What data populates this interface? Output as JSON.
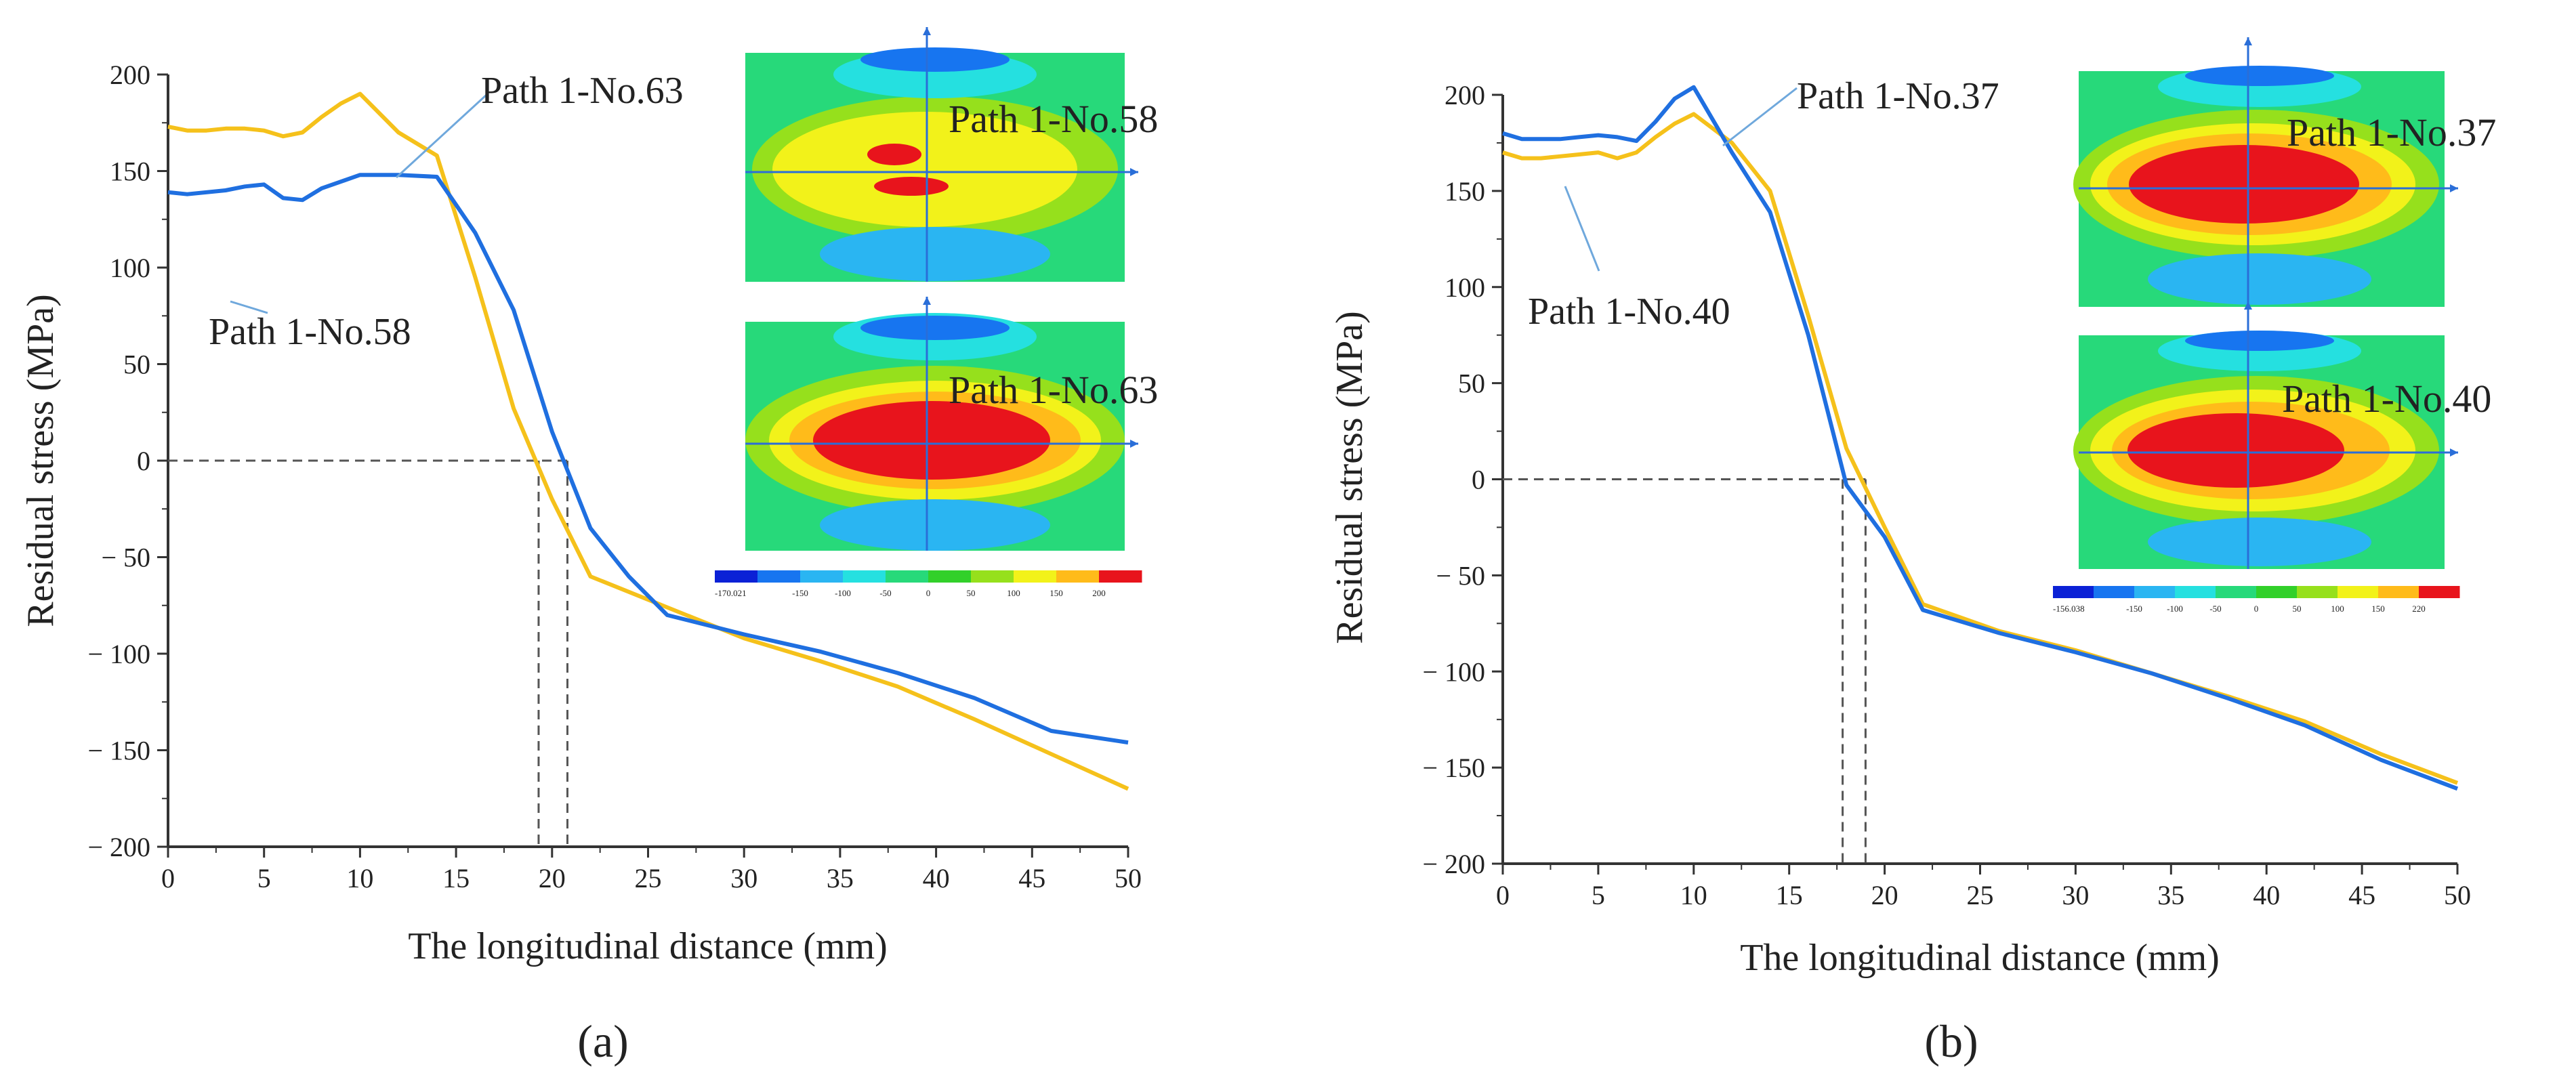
{
  "figure": {
    "panel_labels": [
      "(a)",
      "(b)"
    ]
  },
  "chart_data": [
    {
      "type": "line",
      "panel": "(a)",
      "xlabel": "The longitudinal distance (mm)",
      "ylabel": "Residual  stress (MPa)",
      "xlim": [
        0,
        50
      ],
      "ylim": [
        -200,
        200
      ],
      "xticks": [
        0,
        5,
        10,
        15,
        20,
        25,
        30,
        35,
        40,
        45,
        50
      ],
      "yticks": [
        200,
        150,
        100,
        50,
        0,
        -50,
        -100,
        -150,
        -200
      ],
      "xtick_labels": [
        "0",
        "5",
        "10",
        "15",
        "20",
        "25",
        "30",
        "35",
        "40",
        "45",
        "50"
      ],
      "ytick_labels": [
        "200",
        "150",
        "100",
        "50",
        "0",
        "− 50",
        "− 100",
        "− 150",
        "− 200"
      ],
      "grid": false,
      "zero_crossings": [
        19.3,
        20.8
      ],
      "series": [
        {
          "name": "Path 1-No.58",
          "color": "#1f6fe0",
          "x": [
            0,
            1,
            3,
            4,
            5,
            6,
            7,
            8,
            10,
            12,
            14,
            16,
            18,
            20,
            22,
            24,
            26,
            30,
            34,
            38,
            42,
            46,
            50
          ],
          "y": [
            139,
            138,
            140,
            142,
            143,
            136,
            135,
            141,
            148,
            148,
            147,
            118,
            78,
            15,
            -35,
            -60,
            -80,
            -90,
            -99,
            -110,
            -123,
            -140,
            -146
          ]
        },
        {
          "name": "Path 1-No.63",
          "color": "#f5c11b",
          "x": [
            0,
            1,
            2,
            3,
            4,
            5,
            6,
            7,
            8,
            9,
            10,
            12,
            14,
            16,
            18,
            20,
            22,
            26,
            30,
            34,
            38,
            42,
            46,
            50
          ],
          "y": [
            173,
            171,
            171,
            172,
            172,
            171,
            168,
            170,
            178,
            185,
            190,
            170,
            158,
            95,
            27,
            -20,
            -60,
            -76,
            -92,
            -104,
            -117,
            -134,
            -152,
            -170
          ]
        }
      ],
      "annotations": [
        "Path 1-No.63",
        "Path 1-No.58"
      ],
      "inset": {
        "labels": [
          "Path 1-No.58",
          "Path 1-No.63"
        ],
        "colorbar_ticks": [
          "-170.021",
          "-150",
          "-100",
          "-50",
          "0",
          "50",
          "100",
          "150",
          "200"
        ],
        "colorbar_colors": [
          "#0b21d6",
          "#1775f0",
          "#2ab5f2",
          "#25e0e0",
          "#27d97a",
          "#32d02a",
          "#96e01c",
          "#f2f21a",
          "#ffbb1a",
          "#e8141c"
        ]
      }
    },
    {
      "type": "line",
      "panel": "(b)",
      "xlabel": "The longitudinal distance (mm)",
      "ylabel": "Residual  stress (MPa)",
      "xlim": [
        0,
        50
      ],
      "ylim": [
        -200,
        200
      ],
      "xticks": [
        0,
        5,
        10,
        15,
        20,
        25,
        30,
        35,
        40,
        45,
        50
      ],
      "yticks": [
        200,
        150,
        100,
        50,
        0,
        -50,
        -100,
        -150,
        -200
      ],
      "xtick_labels": [
        "0",
        "5",
        "10",
        "15",
        "20",
        "25",
        "30",
        "35",
        "40",
        "45",
        "50"
      ],
      "ytick_labels": [
        "200",
        "150",
        "100",
        "50",
        "0",
        "− 50",
        "− 100",
        "− 150",
        "− 200"
      ],
      "grid": false,
      "zero_crossings": [
        17.8,
        19.0
      ],
      "series": [
        {
          "name": "Path 1-No.37",
          "color": "#1f6fe0",
          "x": [
            0,
            1,
            3,
            4,
            5,
            6,
            7,
            8,
            9,
            10,
            12,
            14,
            16,
            18,
            20,
            22,
            26,
            30,
            34,
            38,
            42,
            46,
            50
          ],
          "y": [
            180,
            177,
            177,
            178,
            179,
            178,
            176,
            186,
            198,
            204,
            170,
            139,
            75,
            -3,
            -30,
            -68,
            -80,
            -90,
            -101,
            -114,
            -128,
            -146,
            -161
          ]
        },
        {
          "name": "Path 1-No.40",
          "color": "#f5c11b",
          "x": [
            0,
            1,
            2,
            3,
            4,
            5,
            6,
            7,
            8,
            9,
            10,
            12,
            14,
            16,
            18,
            20,
            22,
            26,
            30,
            34,
            38,
            42,
            46,
            50
          ],
          "y": [
            170,
            167,
            167,
            168,
            169,
            170,
            167,
            170,
            178,
            185,
            190,
            175,
            150,
            85,
            16,
            -25,
            -65,
            -79,
            -89,
            -101,
            -113,
            -126,
            -143,
            -158
          ]
        }
      ],
      "annotations": [
        "Path 1-No.37",
        "Path 1-No.40"
      ],
      "inset": {
        "labels": [
          "Path 1-No.37",
          "Path 1-No.40"
        ],
        "colorbar_ticks": [
          "-156.038",
          "-150",
          "-100",
          "-50",
          "0",
          "50",
          "100",
          "150",
          "220"
        ],
        "colorbar_colors": [
          "#0b21d6",
          "#1775f0",
          "#2ab5f2",
          "#25e0e0",
          "#27d97a",
          "#32d02a",
          "#96e01c",
          "#f2f21a",
          "#ffbb1a",
          "#e8141c"
        ]
      }
    }
  ]
}
